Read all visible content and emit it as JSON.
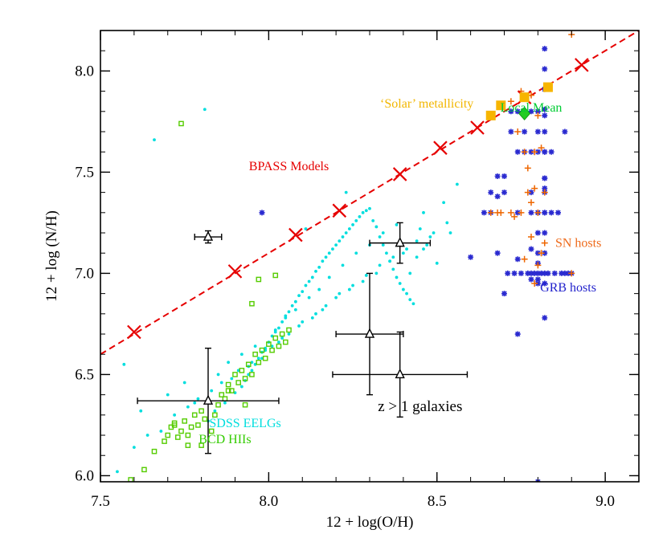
{
  "chart_data": {
    "type": "scatter",
    "title": "",
    "xlabel": "12 + log(O/H)",
    "ylabel": "12 + log (N/H)",
    "xlim": [
      7.5,
      9.1
    ],
    "ylim": [
      5.97,
      8.2
    ],
    "xticks": [
      {
        "v": 7.5,
        "label": "7.5"
      },
      {
        "v": 8.0,
        "label": "8.0"
      },
      {
        "v": 8.5,
        "label": "8.5"
      },
      {
        "v": 9.0,
        "label": "9.0"
      }
    ],
    "yticks": [
      {
        "v": 6.0,
        "label": "6.0"
      },
      {
        "v": 6.5,
        "label": "6.5"
      },
      {
        "v": 7.0,
        "label": "7.0"
      },
      {
        "v": 7.5,
        "label": "7.5"
      },
      {
        "v": 8.0,
        "label": "8.0"
      }
    ],
    "bpass_line": {
      "x": [
        7.5,
        9.1
      ],
      "y": [
        6.6,
        8.2
      ],
      "color": "#e60000"
    },
    "annotations": [
      {
        "text": "‘Solar’ metallicity",
        "x": 8.47,
        "y": 7.82,
        "color": "#f2b600"
      },
      {
        "text": "Local Mean",
        "x": 8.78,
        "y": 7.8,
        "color": "#00cc33"
      },
      {
        "text": "BPASS Models",
        "x": 8.06,
        "y": 7.51,
        "color": "#e60000"
      },
      {
        "text": "SN hosts",
        "x": 8.92,
        "y": 7.13,
        "color": "#ee6a1a"
      },
      {
        "text": "GRB hosts",
        "x": 8.89,
        "y": 6.91,
        "color": "#2222cc"
      },
      {
        "text": "SDSS EELGs",
        "x": 7.93,
        "y": 6.24,
        "color": "#00dede"
      },
      {
        "text": "BCD HIIs",
        "x": 7.87,
        "y": 6.16,
        "color": "#33cc00"
      },
      {
        "text": "z > 1 galaxies",
        "x": 8.45,
        "y": 6.32,
        "color": "#000000"
      }
    ],
    "series": [
      {
        "name": "BPASS Models",
        "marker": "x",
        "color": "#e60000",
        "x": [
          7.6,
          7.9,
          8.08,
          8.21,
          8.39,
          8.51,
          8.62,
          8.76,
          8.93
        ],
        "y": [
          6.71,
          7.01,
          7.19,
          7.31,
          7.49,
          7.62,
          7.72,
          7.87,
          8.03
        ]
      },
      {
        "name": "‘Solar’ metallicity",
        "marker": "square-filled",
        "color": "#f7b500",
        "x": [
          8.66,
          8.69,
          8.76,
          8.83
        ],
        "y": [
          7.78,
          7.83,
          7.87,
          7.92
        ]
      },
      {
        "name": "Local Mean",
        "marker": "diamond",
        "color": "#22cc22",
        "x": [
          8.76
        ],
        "y": [
          7.79
        ]
      },
      {
        "name": "SDSS EELGs",
        "marker": "dot",
        "color": "#00dede",
        "x": [
          7.6,
          7.66,
          7.81,
          7.82,
          7.84,
          7.87,
          7.9,
          7.92,
          7.93,
          7.94,
          7.95,
          7.96,
          7.97,
          7.98,
          7.99,
          8.0,
          8.01,
          8.02,
          8.03,
          8.04,
          8.05,
          8.06,
          8.07,
          8.08,
          8.09,
          8.1,
          8.11,
          8.12,
          8.13,
          8.14,
          8.15,
          8.16,
          8.17,
          8.18,
          8.19,
          8.2,
          8.21,
          8.22,
          8.23,
          8.24,
          8.25,
          8.26,
          8.27,
          8.28,
          8.29,
          8.3,
          8.31,
          8.32,
          8.33,
          8.34,
          8.35,
          8.36,
          8.37,
          8.38,
          8.39,
          8.4,
          8.41,
          8.42,
          8.43,
          8.44,
          8.45,
          8.46,
          8.48,
          8.5,
          8.52,
          8.54,
          8.56,
          7.62,
          7.7,
          7.75,
          7.85,
          7.88,
          7.92,
          7.96,
          8.02,
          8.05,
          8.08,
          8.12,
          8.15,
          8.18,
          8.22,
          8.26,
          8.3,
          8.34,
          8.38,
          8.42,
          8.46,
          7.64,
          7.72,
          7.78,
          7.83,
          7.86,
          7.91,
          7.95,
          7.99,
          8.03,
          8.06,
          8.1,
          8.14,
          8.17,
          8.21,
          8.25,
          8.29,
          8.33,
          8.37,
          8.41,
          8.44,
          7.55,
          7.68,
          7.76,
          7.79,
          7.89,
          7.94,
          7.98,
          8.01,
          8.04,
          8.09,
          8.13,
          8.16,
          8.2,
          8.24,
          8.28,
          8.32,
          8.36,
          8.4,
          8.47,
          8.49,
          8.53,
          7.57,
          8.11,
          8.23
        ],
        "y": [
          6.14,
          7.66,
          7.81,
          6.27,
          6.32,
          6.36,
          6.41,
          6.44,
          6.47,
          6.5,
          6.52,
          6.55,
          6.58,
          6.61,
          6.63,
          6.66,
          6.69,
          6.71,
          6.73,
          6.76,
          6.79,
          6.81,
          6.84,
          6.86,
          6.89,
          6.91,
          6.94,
          6.96,
          6.98,
          7.01,
          7.03,
          7.06,
          7.08,
          7.1,
          7.12,
          7.14,
          7.16,
          7.18,
          7.2,
          7.22,
          7.24,
          7.26,
          7.28,
          7.3,
          7.31,
          7.32,
          7.26,
          7.23,
          7.18,
          7.14,
          7.1,
          7.06,
          7.02,
          6.98,
          6.95,
          6.92,
          6.9,
          6.87,
          6.85,
          7.08,
          7.22,
          7.3,
          7.18,
          7.05,
          7.35,
          7.2,
          7.44,
          6.32,
          6.4,
          6.46,
          6.5,
          6.56,
          6.6,
          6.64,
          6.72,
          6.78,
          6.82,
          6.88,
          6.92,
          6.98,
          7.04,
          7.1,
          7.14,
          7.2,
          7.24,
          7.0,
          7.12,
          6.2,
          6.3,
          6.36,
          6.42,
          6.46,
          6.52,
          6.56,
          6.62,
          6.66,
          6.7,
          6.76,
          6.8,
          6.84,
          6.9,
          6.94,
          6.99,
          7.04,
          7.08,
          7.12,
          7.16,
          6.02,
          6.22,
          6.34,
          6.38,
          6.48,
          6.54,
          6.58,
          6.64,
          6.68,
          6.74,
          6.78,
          6.82,
          6.88,
          6.92,
          6.96,
          7.0,
          7.06,
          7.1,
          7.14,
          7.2,
          7.25,
          6.55,
          7.22,
          7.4
        ],
        "r": 1.9
      },
      {
        "name": "BCD HIIs",
        "marker": "square-open",
        "color": "#55cc00",
        "x": [
          7.59,
          7.63,
          7.66,
          7.69,
          7.7,
          7.71,
          7.72,
          7.73,
          7.74,
          7.75,
          7.76,
          7.77,
          7.78,
          7.79,
          7.8,
          7.81,
          7.83,
          7.84,
          7.85,
          7.86,
          7.87,
          7.88,
          7.89,
          7.9,
          7.91,
          7.92,
          7.93,
          7.94,
          7.95,
          7.96,
          7.97,
          7.98,
          7.99,
          8.0,
          8.01,
          8.02,
          8.03,
          8.04,
          8.05,
          8.06,
          7.74,
          7.97,
          8.02,
          7.95,
          7.8,
          7.76,
          7.72,
          7.88,
          7.93
        ],
        "y": [
          5.98,
          6.03,
          6.12,
          6.17,
          6.2,
          6.24,
          6.26,
          6.19,
          6.22,
          6.27,
          6.2,
          6.24,
          6.3,
          6.25,
          6.32,
          6.28,
          6.22,
          6.3,
          6.35,
          6.4,
          6.38,
          6.45,
          6.42,
          6.5,
          6.46,
          6.52,
          6.48,
          6.55,
          6.5,
          6.6,
          6.56,
          6.62,
          6.58,
          6.65,
          6.62,
          6.68,
          6.64,
          6.7,
          6.66,
          6.72,
          7.74,
          6.97,
          6.99,
          6.85,
          6.15,
          6.15,
          6.25,
          6.42,
          6.35
        ],
        "r": 2.6
      },
      {
        "name": "SN hosts",
        "marker": "plus",
        "color": "#ee6600",
        "x": [
          8.9,
          8.72,
          8.75,
          8.78,
          8.8,
          8.74,
          8.76,
          8.79,
          8.81,
          8.68,
          8.72,
          8.77,
          8.82,
          8.75,
          8.78,
          8.8,
          8.66,
          8.69,
          8.73,
          8.77,
          8.79,
          8.82,
          8.78,
          8.81,
          8.76,
          8.8,
          8.9,
          8.79
        ],
        "y": [
          8.18,
          7.85,
          7.9,
          7.88,
          7.78,
          7.7,
          7.6,
          7.6,
          7.62,
          7.3,
          7.3,
          7.4,
          7.4,
          7.3,
          7.35,
          7.3,
          7.3,
          7.3,
          7.28,
          7.52,
          7.42,
          7.15,
          7.18,
          7.1,
          7.07,
          7.04,
          7.0,
          6.95
        ],
        "r": 4
      },
      {
        "name": "GRB hosts",
        "marker": "star",
        "color": "#2a2ad0",
        "x": [
          8.82,
          8.82,
          8.82,
          8.82,
          8.82,
          8.82,
          8.82,
          8.82,
          8.82,
          8.82,
          8.82,
          8.82,
          8.82,
          8.82,
          8.82,
          8.82,
          8.82,
          8.82,
          8.82,
          8.8,
          8.8,
          8.8,
          8.8,
          8.8,
          8.8,
          8.8,
          8.8,
          8.8,
          8.8,
          8.8,
          8.78,
          8.78,
          8.78,
          8.78,
          8.78,
          8.78,
          8.78,
          8.76,
          8.76,
          8.76,
          8.76,
          8.74,
          8.74,
          8.74,
          8.72,
          8.72,
          8.7,
          8.7,
          8.68,
          8.68,
          8.66,
          8.66,
          8.64,
          8.6,
          8.88,
          8.86,
          8.84,
          8.88,
          8.9,
          8.74,
          8.84,
          8.68,
          8.7,
          8.8,
          7.98,
          8.71,
          8.73,
          8.75,
          8.77,
          8.79,
          8.81,
          8.83,
          8.85,
          8.87,
          8.89,
          8.74
        ],
        "y": [
          8.11,
          8.01,
          7.91,
          7.81,
          7.7,
          7.6,
          7.47,
          7.4,
          7.3,
          7.2,
          7.1,
          7.0,
          6.95,
          6.78,
          7.78,
          7.6,
          7.47,
          7.42,
          7.3,
          7.8,
          7.7,
          7.6,
          7.3,
          7.2,
          7.05,
          7.0,
          6.97,
          6.95,
          5.97,
          7.1,
          7.8,
          7.6,
          7.4,
          7.3,
          7.12,
          7.0,
          6.97,
          7.8,
          7.78,
          7.6,
          7.7,
          7.8,
          7.6,
          7.3,
          7.8,
          7.7,
          7.48,
          7.4,
          7.48,
          7.38,
          7.3,
          7.4,
          7.3,
          7.08,
          7.7,
          7.3,
          7.3,
          7.0,
          7.0,
          6.7,
          7.6,
          7.1,
          6.9,
          7.3,
          7.3,
          7.0,
          7.0,
          7.0,
          7.0,
          7.0,
          7.0,
          7.0,
          7.0,
          7.0,
          7.0,
          7.07
        ],
        "r": 3.5
      },
      {
        "name": "z > 1 galaxies",
        "marker": "triangle-errorbar",
        "color": "#000000",
        "points": [
          {
            "x": 7.82,
            "y": 7.18,
            "xerr": 0.04,
            "yerr": 0.03
          },
          {
            "x": 8.39,
            "y": 7.15,
            "xerr": 0.09,
            "yerr": 0.1
          },
          {
            "x": 8.3,
            "y": 6.7,
            "xerr": 0.1,
            "yerr": 0.3
          },
          {
            "x": 8.39,
            "y": 6.5,
            "xerr": 0.2,
            "yerr": 0.21
          },
          {
            "x": 7.82,
            "y": 6.37,
            "xerr": 0.21,
            "yerr": 0.26
          }
        ]
      }
    ],
    "grid": false,
    "legend": "none"
  }
}
